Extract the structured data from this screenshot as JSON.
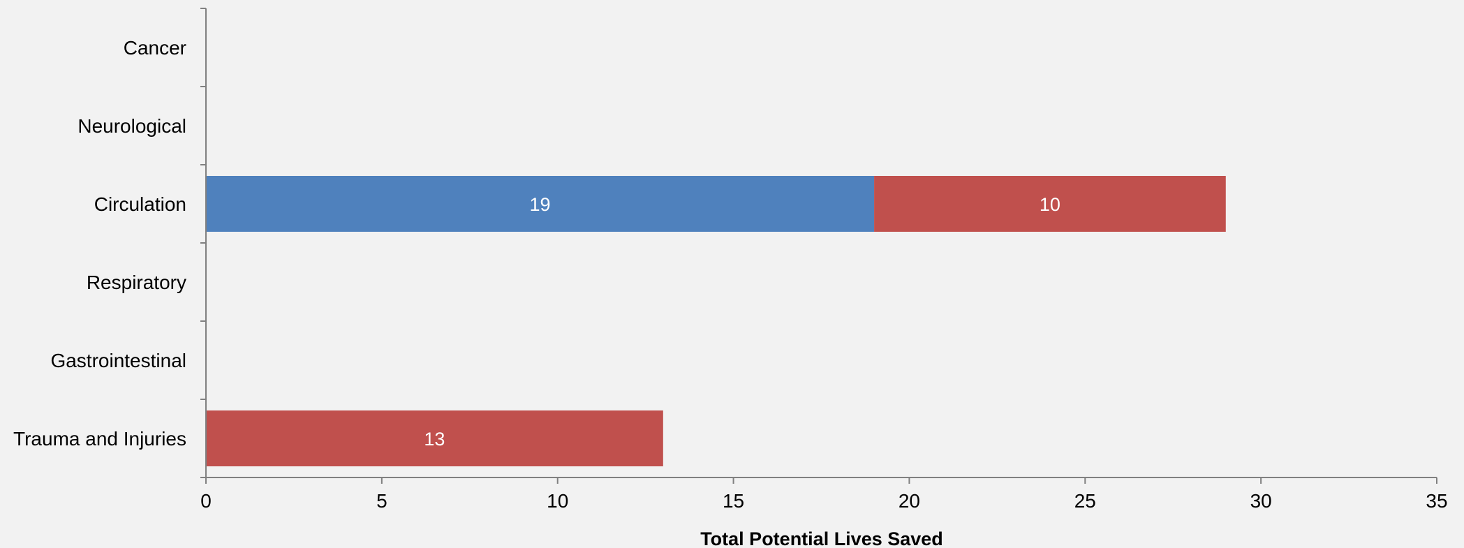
{
  "chart_data": {
    "type": "bar",
    "orientation": "horizontal",
    "stacked": true,
    "categories": [
      "Cancer",
      "Neurological",
      "Circulation",
      "Respiratory",
      "Gastrointestinal",
      "Trauma and Injuries"
    ],
    "series": [
      {
        "color": "#4f81bd",
        "values": [
          0,
          0,
          19,
          0,
          0,
          0
        ]
      },
      {
        "color": "#c0504d",
        "values": [
          0,
          0,
          10,
          0,
          0,
          13
        ]
      }
    ],
    "title": "",
    "xlabel": "Total Potential Lives Saved",
    "ylabel": "",
    "xlim": [
      0,
      35
    ],
    "xticks": [
      0,
      5,
      10,
      15,
      20,
      25,
      30,
      35
    ],
    "grid": false,
    "legend": "none"
  }
}
